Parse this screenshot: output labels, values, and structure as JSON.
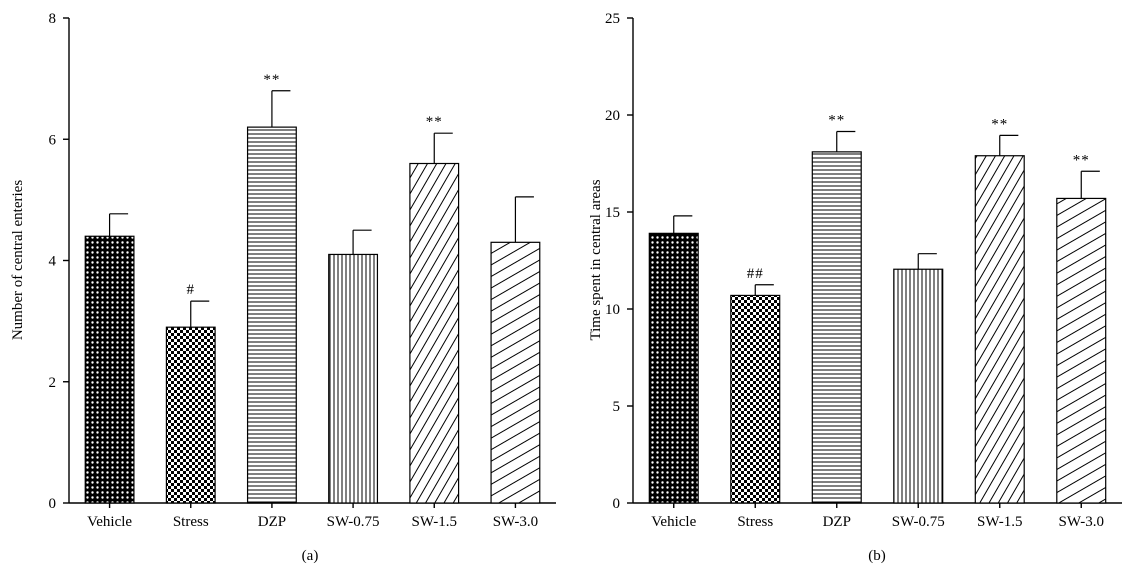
{
  "chart_data": [
    {
      "type": "bar",
      "panel_label": "(a)",
      "ylabel": "Number of central enteries",
      "xlabel": "",
      "ylim": [
        0,
        8
      ],
      "yticks": [
        0,
        2,
        4,
        6,
        8
      ],
      "categories": [
        "Vehicle",
        "Stress",
        "DZP",
        "SW-0.75",
        "SW-1.5",
        "SW-3.0"
      ],
      "values": [
        4.4,
        2.9,
        6.2,
        4.1,
        5.6,
        4.3
      ],
      "errors": [
        0.37,
        0.43,
        0.6,
        0.4,
        0.5,
        0.75
      ],
      "patterns": [
        "dots",
        "checker",
        "horizontal",
        "vertical",
        "diag-down",
        "diag-up"
      ],
      "annotations": [
        "",
        "#",
        "**",
        "",
        "**",
        ""
      ],
      "grid": false
    },
    {
      "type": "bar",
      "panel_label": "(b)",
      "ylabel": "Time spent in central areas",
      "xlabel": "",
      "ylim": [
        0,
        25
      ],
      "yticks": [
        0,
        5,
        10,
        15,
        20,
        25
      ],
      "categories": [
        "Vehicle",
        "Stress",
        "DZP",
        "SW-0.75",
        "SW-1.5",
        "SW-3.0"
      ],
      "values": [
        13.9,
        10.7,
        18.1,
        12.05,
        17.9,
        15.7
      ],
      "errors": [
        0.9,
        0.55,
        1.05,
        0.8,
        1.05,
        1.4
      ],
      "patterns": [
        "dots",
        "checker",
        "horizontal",
        "vertical",
        "diag-down",
        "diag-up"
      ],
      "annotations": [
        "",
        "##",
        "**",
        "",
        "**",
        "**"
      ],
      "grid": false
    }
  ]
}
